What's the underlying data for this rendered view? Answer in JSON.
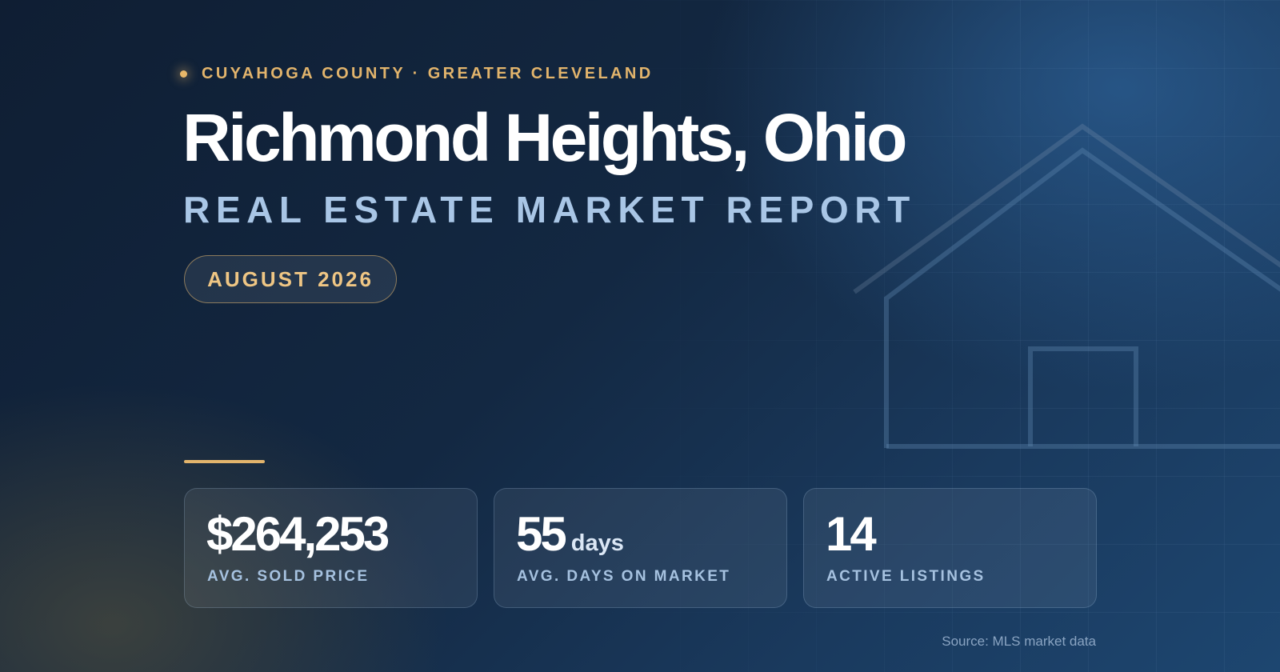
{
  "header": {
    "eyebrow": "CUYAHOGA COUNTY · GREATER CLEVELAND",
    "title": "Richmond Heights, Ohio",
    "subtitle": "REAL ESTATE MARKET REPORT",
    "badge": "AUGUST 2026"
  },
  "stats": [
    {
      "value": "$264,253",
      "label": "AVG. SOLD PRICE"
    },
    {
      "value": "55",
      "unit": "days",
      "label": "AVG. DAYS ON MARKET"
    },
    {
      "value": "14",
      "label": "ACTIVE LISTINGS"
    }
  ],
  "footer": {
    "source": "Source: MLS market data"
  }
}
